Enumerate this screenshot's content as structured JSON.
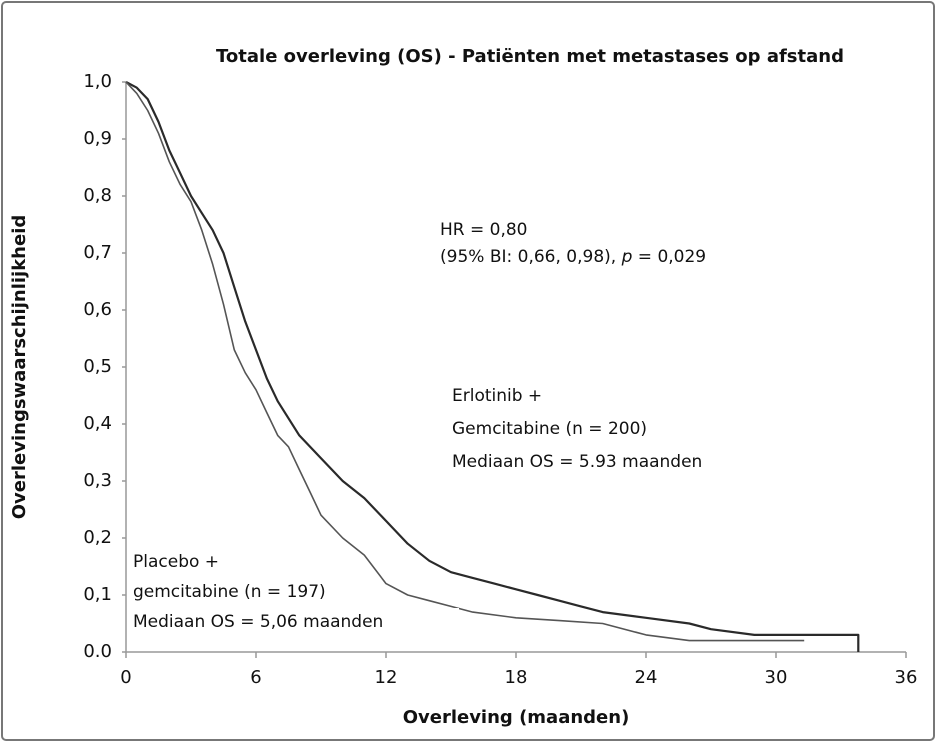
{
  "chart_data": {
    "type": "line",
    "title": "Totale overleving (OS) - Patiënten met metastases op afstand",
    "x_label": "Overleving (maanden)",
    "y_label": "Overlevingswaarschijnlijkheid",
    "xlim": [
      0,
      36
    ],
    "ylim": [
      0,
      1
    ],
    "xticks": [
      0,
      6,
      12,
      18,
      24,
      30,
      36
    ],
    "yticks": [
      {
        "value": 0,
        "label": "0.0"
      },
      {
        "value": 0.1,
        "label": "0,1"
      },
      {
        "value": 0.2,
        "label": "0,2"
      },
      {
        "value": 0.3,
        "label": "0,3"
      },
      {
        "value": 0.4,
        "label": "0,4"
      },
      {
        "value": 0.5,
        "label": "0,5"
      },
      {
        "value": 0.6,
        "label": "0,6"
      },
      {
        "value": 0.7,
        "label": "0,7"
      },
      {
        "value": 0.8,
        "label": "0,8"
      },
      {
        "value": 0.9,
        "label": "0,9"
      },
      {
        "value": 1,
        "label": "1,0"
      }
    ],
    "series": [
      {
        "color": "#2a2a2a",
        "label": [
          "Erlotinib +",
          "Gemcitabine (n = 200)",
          "Mediaan OS = 5.93 maanden"
        ],
        "x": [
          0,
          0.5,
          1,
          1.5,
          2,
          2.5,
          3,
          3.5,
          4,
          4.5,
          5,
          5.5,
          6,
          6.5,
          7,
          7.5,
          8,
          9,
          10,
          11,
          12,
          13,
          14,
          15,
          16,
          17,
          18,
          19,
          20,
          21,
          22,
          24,
          26,
          27,
          29,
          33.8,
          33.8
        ],
        "values": [
          1,
          0.99,
          0.97,
          0.93,
          0.88,
          0.84,
          0.8,
          0.77,
          0.74,
          0.7,
          0.64,
          0.58,
          0.53,
          0.48,
          0.44,
          0.41,
          0.38,
          0.34,
          0.3,
          0.27,
          0.23,
          0.19,
          0.16,
          0.14,
          0.13,
          0.12,
          0.11,
          0.1,
          0.09,
          0.08,
          0.07,
          0.06,
          0.05,
          0.04,
          0.03,
          0.03,
          0
        ]
      },
      {
        "color": "#555555",
        "label": [
          "Placebo +",
          "gemcitabine (n = 197)",
          "Mediaan OS = 5,06 maanden"
        ],
        "x": [
          0,
          0.5,
          1,
          1.5,
          2,
          2.5,
          3,
          3.5,
          4,
          4.5,
          5,
          5.5,
          6,
          6.5,
          7,
          7.5,
          8,
          8.5,
          9,
          10,
          11,
          12,
          13,
          14,
          15,
          16,
          18,
          20,
          22,
          24,
          26,
          28,
          31.3
        ],
        "values": [
          1,
          0.98,
          0.95,
          0.91,
          0.86,
          0.82,
          0.79,
          0.74,
          0.68,
          0.61,
          0.53,
          0.49,
          0.46,
          0.42,
          0.38,
          0.36,
          0.32,
          0.28,
          0.24,
          0.2,
          0.17,
          0.12,
          0.1,
          0.09,
          0.08,
          0.07,
          0.06,
          0.055,
          0.05,
          0.03,
          0.02,
          0.02,
          0.02
        ]
      }
    ],
    "annotations": [
      {
        "lines": [
          [
            {
              "text": "HR = 0,80"
            }
          ],
          [
            {
              "text": "(95% BI: 0,66, 0,98), "
            },
            {
              "text": "p",
              "italic": true
            },
            {
              "text": " = 0,029"
            }
          ]
        ]
      }
    ]
  }
}
